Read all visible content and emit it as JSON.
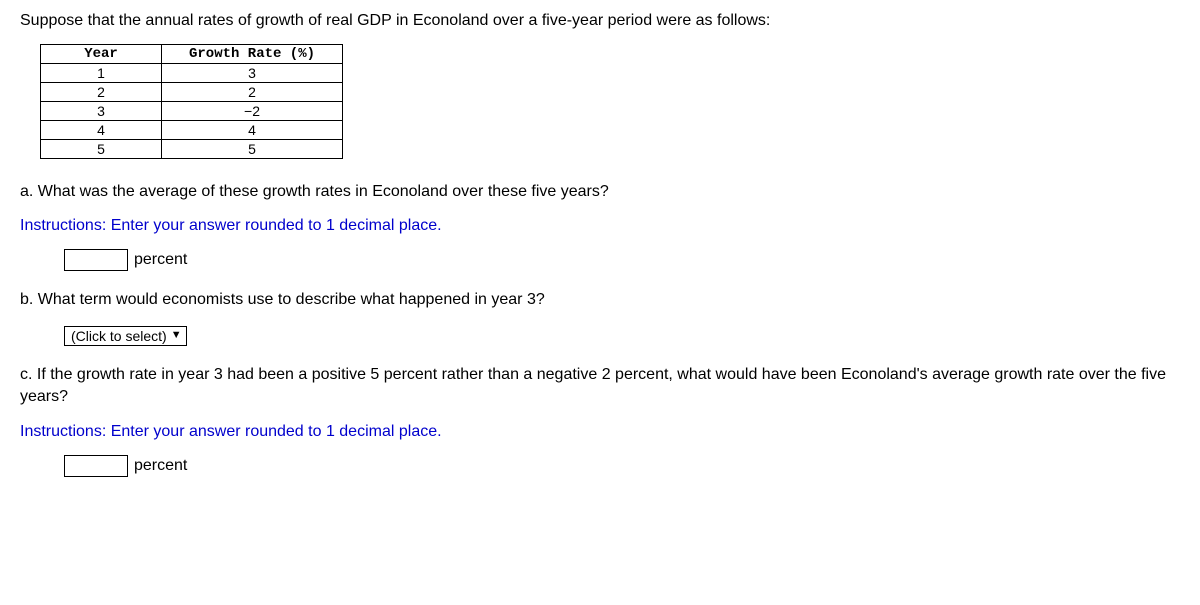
{
  "intro": "Suppose that the annual rates of growth of real GDP in Econoland over a five-year period were as follows:",
  "table": {
    "headers": {
      "year": "Year",
      "rate": "Growth Rate (%)"
    },
    "rows": [
      {
        "year": "1",
        "rate": "3"
      },
      {
        "year": "2",
        "rate": "2"
      },
      {
        "year": "3",
        "rate": "−2"
      },
      {
        "year": "4",
        "rate": "4"
      },
      {
        "year": "5",
        "rate": "5"
      }
    ]
  },
  "qa": {
    "text": "a. What was the average of these growth rates in Econoland over these five years?",
    "instructions": "Instructions: Enter your answer rounded to 1 decimal place.",
    "unit": "percent"
  },
  "qb": {
    "text": "b. What term would economists use to describe what happened in year 3?",
    "select_placeholder": "(Click to select)"
  },
  "qc": {
    "text": "c. If the growth rate in year 3 had been a positive 5 percent rather than a negative 2 percent, what would have been Econoland's average growth rate over the five years?",
    "instructions": "Instructions: Enter your answer rounded to 1 decimal place.",
    "unit": "percent"
  },
  "colors": {
    "instructions": "#0000cc",
    "text": "#000000",
    "border": "#000000"
  }
}
